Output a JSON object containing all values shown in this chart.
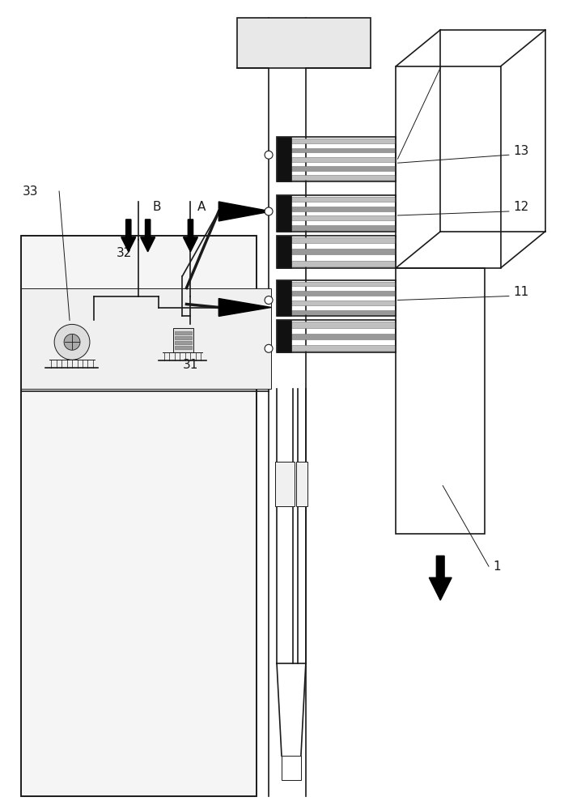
{
  "bg": "#ffffff",
  "lc": "#1a1a1a",
  "figsize": [
    6.97,
    10.0
  ],
  "dpi": 100,
  "fs": 11,
  "alw": 0.7
}
